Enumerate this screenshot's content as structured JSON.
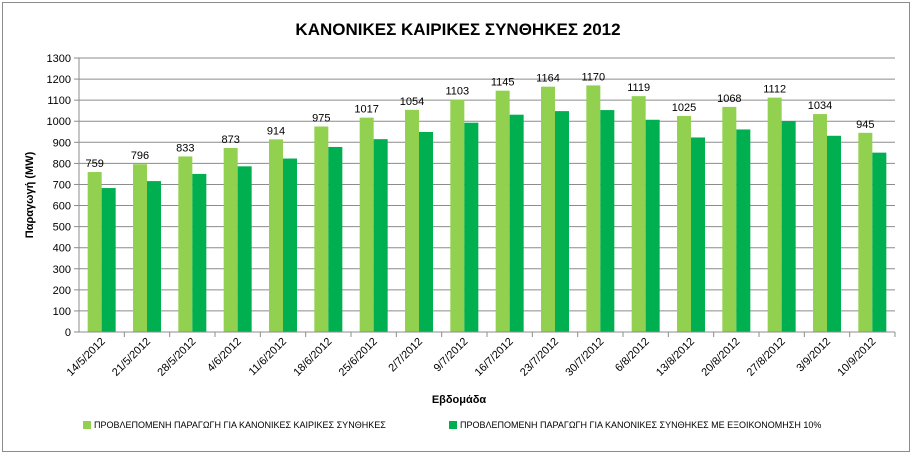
{
  "chart_data": {
    "type": "bar",
    "title": "ΚΑΝΟΝΙΚΕΣ ΚΑΙΡΙΚΕΣ ΣΥΝΘΗΚΕΣ 2012",
    "xlabel": "Εβδομάδα",
    "ylabel": "Παραγωγή (MW)",
    "ylim": [
      0,
      1300
    ],
    "ytick_step": 100,
    "grid": true,
    "legend_position": "bottom",
    "categories": [
      "14/5/2012",
      "21/5/2012",
      "28/5/2012",
      "4/6/2012",
      "11/6/2012",
      "18/6/2012",
      "25/6/2012",
      "2/7/2012",
      "9/7/2012",
      "16/7/2012",
      "23/7/2012",
      "30/7/2012",
      "6/8/2012",
      "13/8/2012",
      "20/8/2012",
      "27/8/2012",
      "3/9/2012",
      "10/9/2012"
    ],
    "series": [
      {
        "name": "ΠΡΟΒΛΕΠΟΜΕΝΗ  ΠΑΡΑΓΩΓΗ  ΓΙΑ ΚΑΝΟΝΙΚΕΣ  ΚΑΙΡΙΚΕΣ ΣΥΝΘΗΚΕΣ",
        "color": "#92d050",
        "values": [
          759,
          796,
          833,
          873,
          914,
          975,
          1017,
          1054,
          1103,
          1145,
          1164,
          1170,
          1119,
          1025,
          1068,
          1112,
          1034,
          945
        ],
        "labels_shown": true
      },
      {
        "name": "ΠΡΟΒΛΕΠΟΜΕΝΗ  ΠΑΡΑΓΩΓΗ ΓΙΑ ΚΑΝΟΝΙΚΕΣ ΣΥΝΘΗΚΕΣ  ΜΕ  ΕΞΟΙΚΟΝΟΜΗΣΗ  10%",
        "color": "#00b050",
        "values": [
          683,
          716,
          750,
          786,
          823,
          878,
          915,
          949,
          993,
          1031,
          1048,
          1053,
          1007,
          923,
          961,
          1001,
          931,
          851
        ],
        "labels_shown": false
      }
    ]
  }
}
